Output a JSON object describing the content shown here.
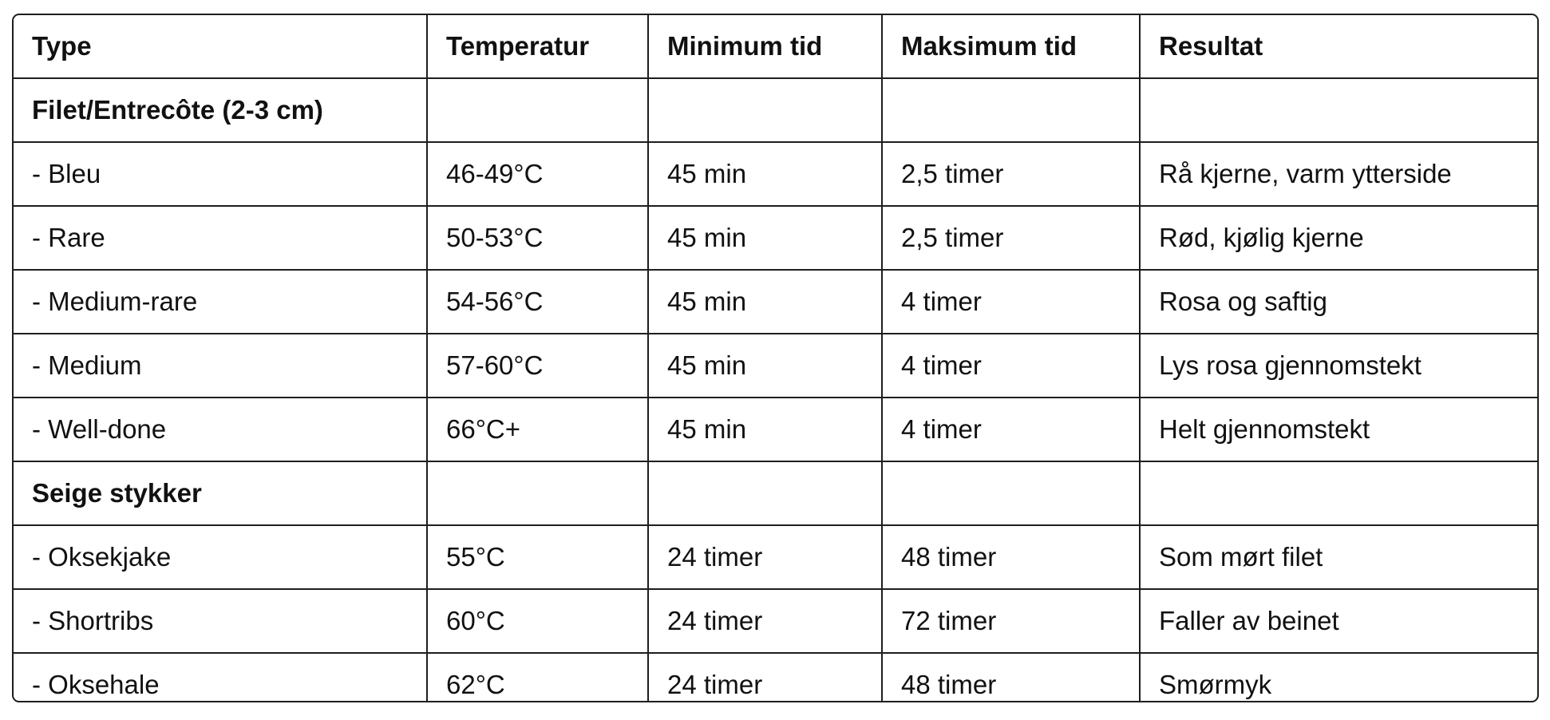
{
  "table": {
    "header": [
      "Type",
      "Temperatur",
      "Minimum tid",
      "Maksimum tid",
      "Resultat"
    ],
    "rows": [
      [
        "Filet/Entrecôte (2-3 cm)"
      ],
      [
        "- Bleu",
        "46-49°C",
        "45 min",
        "2,5 timer",
        "Rå kjerne, varm ytterside"
      ],
      [
        "- Rare",
        "50-53°C",
        "45 min",
        "2,5 timer",
        "Rød, kjølig kjerne"
      ],
      [
        "- Medium-rare",
        "54-56°C",
        "45 min",
        "4 timer",
        "Rosa og saftig"
      ],
      [
        "- Medium",
        "57-60°C",
        "45 min",
        "4 timer",
        "Lys rosa gjennomstekt"
      ],
      [
        "- Well-done",
        "66°C+",
        "45 min",
        "4 timer",
        "Helt gjennomstekt"
      ],
      [
        "Seige stykker"
      ],
      [
        "- Oksekjake",
        "55°C",
        "24 timer",
        "48 timer",
        "Som mørt filet"
      ],
      [
        "- Shortribs",
        "60°C",
        "24 timer",
        "72 timer",
        "Faller av beinet"
      ],
      [
        "- Oksehale",
        "62°C",
        "24 timer",
        "48 timer",
        "Smørmyk"
      ]
    ]
  }
}
